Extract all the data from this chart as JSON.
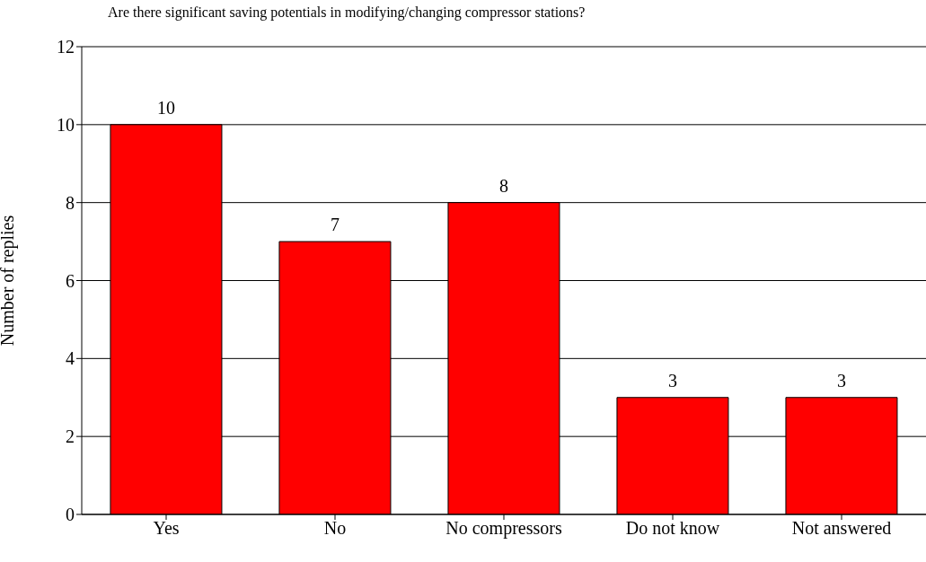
{
  "chart_data": {
    "type": "bar",
    "title": "Are there significant saving potentials in modifying/changing compressor stations?",
    "ylabel": "Number of replies",
    "categories": [
      "Yes",
      "No",
      "No compressors",
      "Do not know",
      "Not answered"
    ],
    "values": [
      10,
      7,
      8,
      3,
      3
    ],
    "color": "#ff0000",
    "ylim": [
      0,
      12
    ],
    "yticks": [
      0,
      2,
      4,
      6,
      8,
      10,
      12
    ],
    "grid": "y",
    "data_labels": true,
    "legend": false
  }
}
